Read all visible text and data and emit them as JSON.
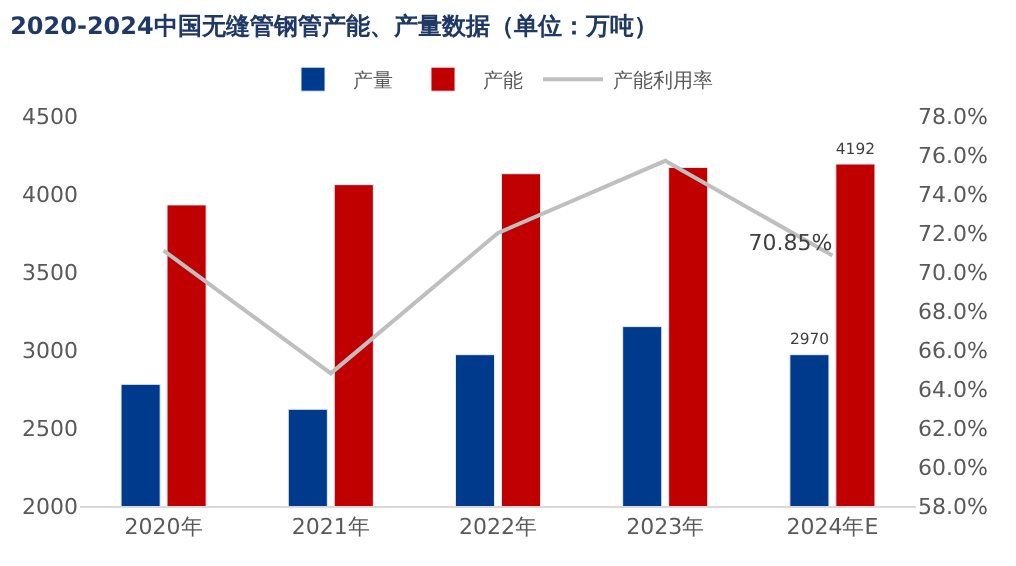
{
  "chart_data": {
    "type": "bar",
    "title": "2020-2024中国无缝管钢管产能、产量数据（单位：万吨）",
    "categories": [
      "2020年",
      "2021年",
      "2022年",
      "2023年",
      "2024年E"
    ],
    "series": [
      {
        "name": "产量",
        "color": "#003a8c",
        "values": [
          2780,
          2620,
          2970,
          3150,
          2970
        ],
        "value_labels": [
          null,
          null,
          null,
          null,
          "2970"
        ]
      },
      {
        "name": "产能",
        "color": "#c00000",
        "values": [
          3930,
          4060,
          4130,
          4170,
          4192
        ],
        "value_labels": [
          null,
          null,
          null,
          null,
          "4192"
        ]
      },
      {
        "name": "产能利用率",
        "type": "line",
        "axis": "y2",
        "color": "#bfbfbf",
        "values": [
          71.1,
          64.8,
          72.0,
          75.7,
          70.85
        ],
        "value_labels": [
          null,
          null,
          null,
          null,
          "70.85%"
        ]
      }
    ],
    "ylim": [
      2000,
      4500
    ],
    "yticks": [
      2000,
      2500,
      3000,
      3500,
      4000,
      4500
    ],
    "y2lim": [
      58,
      78
    ],
    "y2ticks": [
      {
        "value": 58,
        "label": "58.0%"
      },
      {
        "value": 60,
        "label": "60.0%"
      },
      {
        "value": 62,
        "label": "62.0%"
      },
      {
        "value": 64,
        "label": "64.0%"
      },
      {
        "value": 66,
        "label": "66.0%"
      },
      {
        "value": 68,
        "label": "68.0%"
      },
      {
        "value": 70,
        "label": "70.0%"
      },
      {
        "value": 72,
        "label": "72.0%"
      },
      {
        "value": 74,
        "label": "74.0%"
      },
      {
        "value": 76,
        "label": "76.0%"
      },
      {
        "value": 78,
        "label": "78.0%"
      }
    ],
    "legend": "top"
  }
}
